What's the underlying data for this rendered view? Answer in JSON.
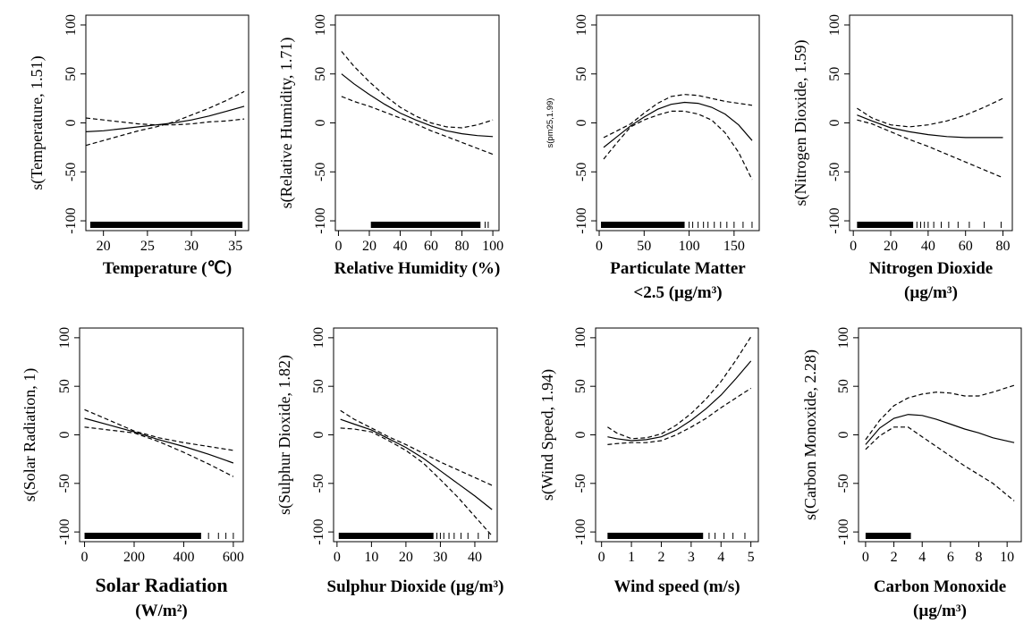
{
  "colors": {
    "line": "#000000",
    "background": "#ffffff"
  },
  "chart_data": [
    {
      "type": "line",
      "ylabel": "s(Temperature, 1.51)",
      "xlabel": [
        "Temperature (℃)"
      ],
      "xlim": [
        18,
        36.5
      ],
      "ylim": [
        -110,
        110
      ],
      "xticks": [
        20,
        25,
        30,
        35
      ],
      "yticks": [
        -100,
        -50,
        0,
        50,
        100
      ],
      "x": [
        18,
        20,
        22,
        24,
        26,
        28,
        30,
        32,
        34,
        36
      ],
      "series": [
        {
          "style": "dashed",
          "values": [
            5,
            3,
            1,
            -1,
            -2,
            -2,
            -1,
            1,
            2,
            4
          ]
        },
        {
          "style": "solid",
          "values": [
            -9,
            -8,
            -6,
            -4,
            -2,
            0,
            3,
            7,
            12,
            17
          ]
        },
        {
          "style": "dashed",
          "values": [
            -23,
            -18,
            -13,
            -8,
            -4,
            1,
            8,
            15,
            23,
            32
          ]
        }
      ],
      "rug": {
        "from": 18.5,
        "to": 35.8,
        "sparse": []
      }
    },
    {
      "type": "line",
      "ylabel": "s(Relative Humidity, 1.71)",
      "xlabel": [
        "Relative Humidity (%)"
      ],
      "xlim": [
        -2,
        104
      ],
      "ylim": [
        -110,
        110
      ],
      "xticks": [
        0,
        20,
        40,
        60,
        80,
        100
      ],
      "yticks": [
        -100,
        -50,
        0,
        50,
        100
      ],
      "x": [
        2,
        10,
        20,
        30,
        40,
        50,
        60,
        70,
        80,
        90,
        100
      ],
      "series": [
        {
          "style": "dashed",
          "values": [
            73,
            58,
            42,
            28,
            16,
            7,
            0,
            -4,
            -5,
            -2,
            3
          ]
        },
        {
          "style": "solid",
          "values": [
            50,
            40,
            29,
            19,
            10,
            3,
            -3,
            -8,
            -11,
            -13,
            -14
          ]
        },
        {
          "style": "dashed",
          "values": [
            27,
            22,
            17,
            11,
            5,
            -1,
            -8,
            -14,
            -20,
            -26,
            -32
          ]
        }
      ],
      "rug": {
        "from": 21,
        "to": 92,
        "sparse": [
          95,
          97
        ]
      }
    },
    {
      "type": "line",
      "ylabel": "s(pm25,1.99)",
      "xlabel": [
        "Particulate Matter",
        "<2.5 (µg/m³)"
      ],
      "xlim": [
        -3,
        178
      ],
      "ylim": [
        -110,
        110
      ],
      "xticks": [
        0,
        50,
        100,
        150
      ],
      "yticks": [
        -100,
        -50,
        0,
        50,
        100
      ],
      "x": [
        5,
        20,
        35,
        50,
        65,
        80,
        95,
        110,
        125,
        140,
        155,
        170
      ],
      "series": [
        {
          "style": "dashed",
          "values": [
            -15,
            -8,
            -1,
            10,
            20,
            27,
            29,
            28,
            25,
            22,
            20,
            18
          ]
        },
        {
          "style": "solid",
          "values": [
            -25,
            -14,
            -3,
            6,
            14,
            19,
            21,
            20,
            16,
            9,
            -2,
            -18
          ]
        },
        {
          "style": "dashed",
          "values": [
            -37,
            -20,
            -4,
            3,
            8,
            12,
            12,
            9,
            3,
            -10,
            -30,
            -58
          ]
        }
      ],
      "rug": {
        "from": 2,
        "to": 95,
        "sparse": [
          100,
          104,
          110,
          116,
          121,
          128,
          135,
          142,
          150,
          160,
          170
        ]
      }
    },
    {
      "type": "line",
      "ylabel": "s(Nitrogen Dioxide, 1.59)",
      "xlabel": [
        "Nitrogen Dioxide",
        "(µg/m³)"
      ],
      "xlim": [
        -2,
        85
      ],
      "ylim": [
        -110,
        110
      ],
      "xticks": [
        0,
        20,
        40,
        60,
        80
      ],
      "yticks": [
        -100,
        -50,
        0,
        50,
        100
      ],
      "x": [
        2,
        10,
        20,
        30,
        40,
        50,
        60,
        70,
        80
      ],
      "series": [
        {
          "style": "dashed",
          "values": [
            15,
            5,
            -2,
            -4,
            -2,
            2,
            8,
            16,
            25
          ]
        },
        {
          "style": "solid",
          "values": [
            8,
            2,
            -5,
            -9,
            -12,
            -14,
            -15,
            -15,
            -15
          ]
        },
        {
          "style": "dashed",
          "values": [
            3,
            -1,
            -9,
            -17,
            -24,
            -32,
            -40,
            -48,
            -56
          ]
        }
      ],
      "rug": {
        "from": 2,
        "to": 32,
        "sparse": [
          34,
          36,
          38,
          40,
          43,
          47,
          51,
          56,
          62,
          70,
          79
        ]
      }
    },
    {
      "type": "line",
      "ylabel": "s(Solar Radiation, 1)",
      "xlabel": [
        "Solar Radiation",
        "(W/m²)"
      ],
      "xlim": [
        -20,
        640
      ],
      "ylim": [
        -110,
        110
      ],
      "xticks": [
        0,
        200,
        400,
        600
      ],
      "yticks": [
        -100,
        -50,
        0,
        50,
        100
      ],
      "x": [
        0,
        100,
        200,
        300,
        400,
        500,
        600
      ],
      "series": [
        {
          "style": "dashed",
          "values": [
            26,
            15,
            4,
            -3,
            -8,
            -12,
            -16
          ]
        },
        {
          "style": "solid",
          "values": [
            17,
            10,
            3,
            -5,
            -12,
            -20,
            -29
          ]
        },
        {
          "style": "dashed",
          "values": [
            8,
            5,
            2,
            -7,
            -18,
            -30,
            -43
          ]
        }
      ],
      "rug": {
        "from": 0,
        "to": 470,
        "sparse": [
          500,
          540,
          570,
          600
        ]
      }
    },
    {
      "type": "line",
      "ylabel": "s(Sulphur Dioxide, 1.82)",
      "xlabel": [
        "Sulphur Dioxide (µg/m³)"
      ],
      "xlim": [
        -1,
        46.5
      ],
      "ylim": [
        -110,
        110
      ],
      "xticks": [
        0,
        10,
        20,
        30,
        40
      ],
      "yticks": [
        -100,
        -50,
        0,
        50,
        100
      ],
      "x": [
        1,
        5,
        10,
        15,
        20,
        25,
        30,
        35,
        40,
        45
      ],
      "series": [
        {
          "style": "dashed",
          "values": [
            25,
            16,
            7,
            -2,
            -10,
            -19,
            -28,
            -36,
            -44,
            -52
          ]
        },
        {
          "style": "solid",
          "values": [
            16,
            11,
            5,
            -4,
            -13,
            -24,
            -37,
            -50,
            -63,
            -77
          ]
        },
        {
          "style": "dashed",
          "values": [
            7,
            6,
            3,
            -6,
            -16,
            -29,
            -46,
            -64,
            -84,
            -104
          ]
        }
      ],
      "rug": {
        "from": 0.5,
        "to": 28,
        "sparse": [
          29,
          30,
          31,
          32.5,
          34,
          36,
          38,
          41,
          44
        ]
      }
    },
    {
      "type": "line",
      "ylabel": "s(Wind Speed, 1.94)",
      "xlabel": [
        "Wind speed (m/s)"
      ],
      "xlim": [
        -0.2,
        5.25
      ],
      "ylim": [
        -110,
        110
      ],
      "xticks": [
        0,
        1,
        2,
        3,
        4,
        5
      ],
      "yticks": [
        -100,
        -50,
        0,
        50,
        100
      ],
      "x": [
        0.2,
        0.5,
        1,
        1.5,
        2,
        2.5,
        3,
        3.5,
        4,
        4.5,
        5
      ],
      "series": [
        {
          "style": "dashed",
          "values": [
            8,
            2,
            -4,
            -3,
            1,
            10,
            22,
            37,
            55,
            77,
            101
          ]
        },
        {
          "style": "solid",
          "values": [
            -2,
            -4,
            -6,
            -5,
            -2,
            5,
            15,
            27,
            41,
            58,
            76
          ]
        },
        {
          "style": "dashed",
          "values": [
            -10,
            -9,
            -8,
            -8,
            -6,
            0,
            8,
            17,
            28,
            38,
            48
          ]
        }
      ],
      "rug": {
        "from": 0.2,
        "to": 3.4,
        "sparse": [
          3.6,
          3.8,
          4.1,
          4.4,
          4.8
        ]
      }
    },
    {
      "type": "line",
      "ylabel": "s(Carbon Monoxide, 2.28)",
      "xlabel": [
        "Carbon Monoxide",
        "(µg/m³)"
      ],
      "xlim": [
        -0.5,
        11
      ],
      "ylim": [
        -110,
        110
      ],
      "xticks": [
        0,
        2,
        4,
        6,
        8,
        10
      ],
      "yticks": [
        -100,
        -50,
        0,
        50,
        100
      ],
      "x": [
        0,
        1,
        2,
        3,
        4,
        5,
        6,
        7,
        8,
        9,
        10.5
      ],
      "series": [
        {
          "style": "dashed",
          "values": [
            -5,
            15,
            30,
            38,
            42,
            44,
            43,
            40,
            40,
            44,
            51
          ]
        },
        {
          "style": "solid",
          "values": [
            -10,
            7,
            17,
            21,
            20,
            16,
            11,
            6,
            2,
            -3,
            -8
          ]
        },
        {
          "style": "dashed",
          "values": [
            -15,
            -1,
            8,
            8,
            -2,
            -12,
            -22,
            -32,
            -41,
            -50,
            -68
          ]
        }
      ],
      "rug": {
        "from": 0,
        "to": 3.2,
        "sparse": []
      }
    }
  ]
}
